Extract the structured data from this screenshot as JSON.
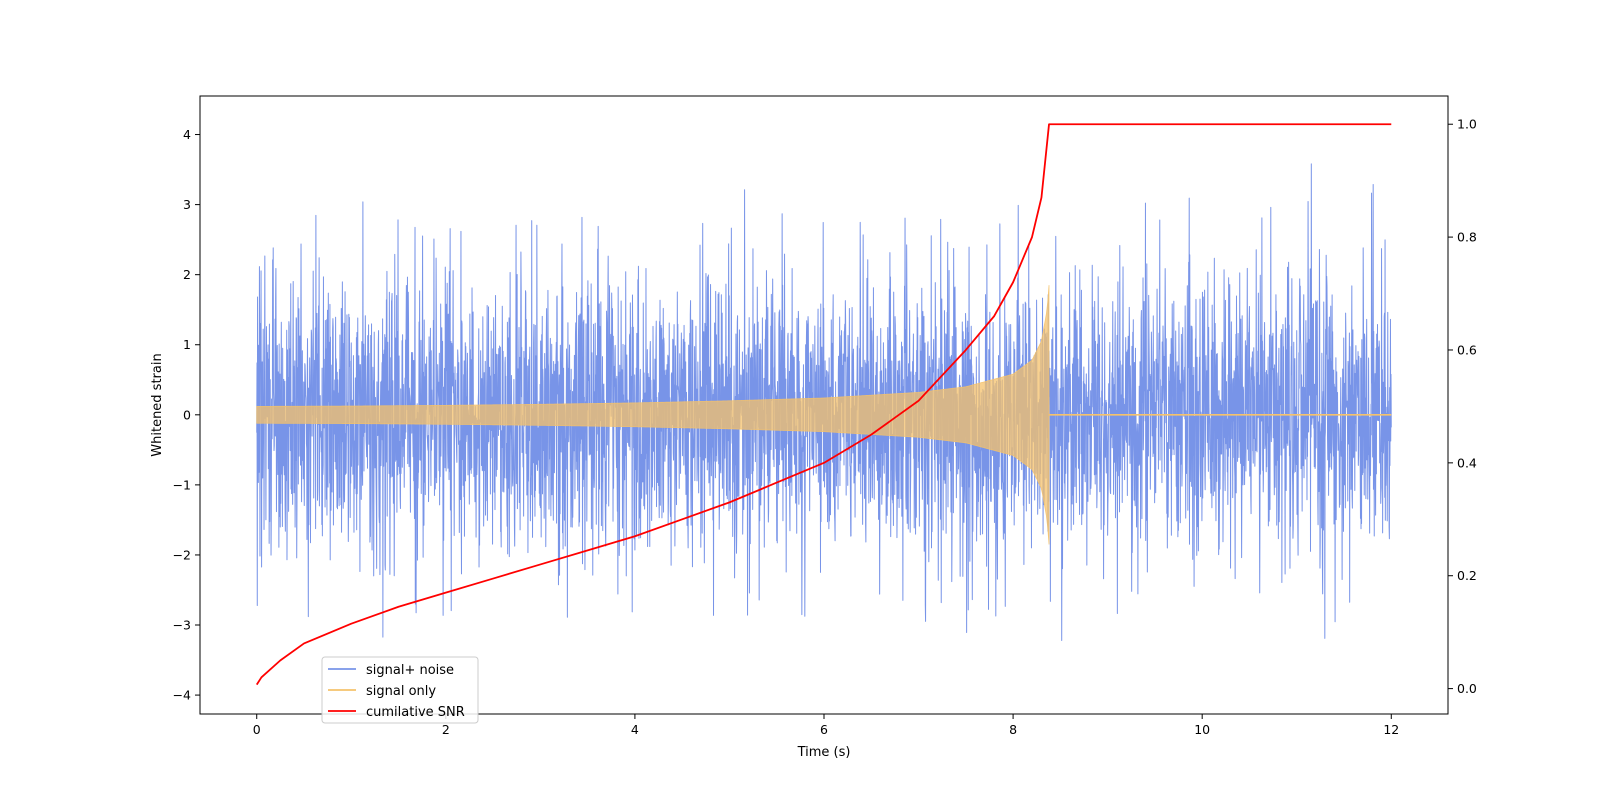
{
  "chart_data": {
    "type": "line",
    "title": "",
    "xlabel": "Time (s)",
    "ylabel": "Whitened strain",
    "y2label": "",
    "xlim": [
      -0.6,
      12.6
    ],
    "ylim": [
      -4.27,
      4.55
    ],
    "y2lim": [
      -0.045,
      1.05
    ],
    "x_ticks": [
      0,
      2,
      4,
      6,
      8,
      10,
      12
    ],
    "y_ticks": [
      -4,
      -3,
      -2,
      -1,
      0,
      1,
      2,
      3,
      4
    ],
    "y2_ticks": [
      0.0,
      0.2,
      0.4,
      0.6,
      0.8,
      1.0
    ],
    "x_tick_labels": [
      "0",
      "2",
      "4",
      "6",
      "8",
      "10",
      "12"
    ],
    "y_tick_labels": [
      "−4",
      "−3",
      "−2",
      "−1",
      "0",
      "1",
      "2",
      "3",
      "4"
    ],
    "y2_tick_labels": [
      "0.0",
      "0.2",
      "0.4",
      "0.6",
      "0.8",
      "1.0"
    ],
    "grid": false,
    "legend_position": "lower-left",
    "merger_time": 8.38,
    "series": [
      {
        "name": "signal+ noise",
        "color": "#7894e8",
        "axis": "left",
        "t_range": [
          0,
          12
        ],
        "typical_range": [
          -2.0,
          2.0
        ],
        "max_excursion": 4.0
      },
      {
        "name": "signal only",
        "color": "#f5c26b",
        "axis": "left",
        "envelope": {
          "t": [
            0,
            1,
            2,
            3,
            4,
            5,
            6,
            7,
            7.5,
            8.0,
            8.2,
            8.3,
            8.36,
            8.38
          ],
          "amplitude": [
            0.12,
            0.125,
            0.135,
            0.15,
            0.17,
            0.2,
            0.24,
            0.32,
            0.4,
            0.58,
            0.78,
            1.05,
            1.5,
            1.85
          ]
        },
        "post_merger_value": 0.0
      },
      {
        "name": "cumilative SNR",
        "color": "#ff0000",
        "axis": "right",
        "x": [
          0,
          0.05,
          0.25,
          0.5,
          1,
          1.5,
          2,
          2.5,
          3,
          3.5,
          4,
          4.5,
          5,
          5.5,
          6,
          6.5,
          7,
          7.5,
          7.8,
          8.0,
          8.2,
          8.3,
          8.38,
          12
        ],
        "y": [
          0.007,
          0.02,
          0.05,
          0.08,
          0.115,
          0.145,
          0.17,
          0.195,
          0.22,
          0.245,
          0.27,
          0.3,
          0.33,
          0.365,
          0.4,
          0.45,
          0.51,
          0.6,
          0.66,
          0.72,
          0.8,
          0.87,
          1.0,
          1.0
        ]
      }
    ]
  }
}
